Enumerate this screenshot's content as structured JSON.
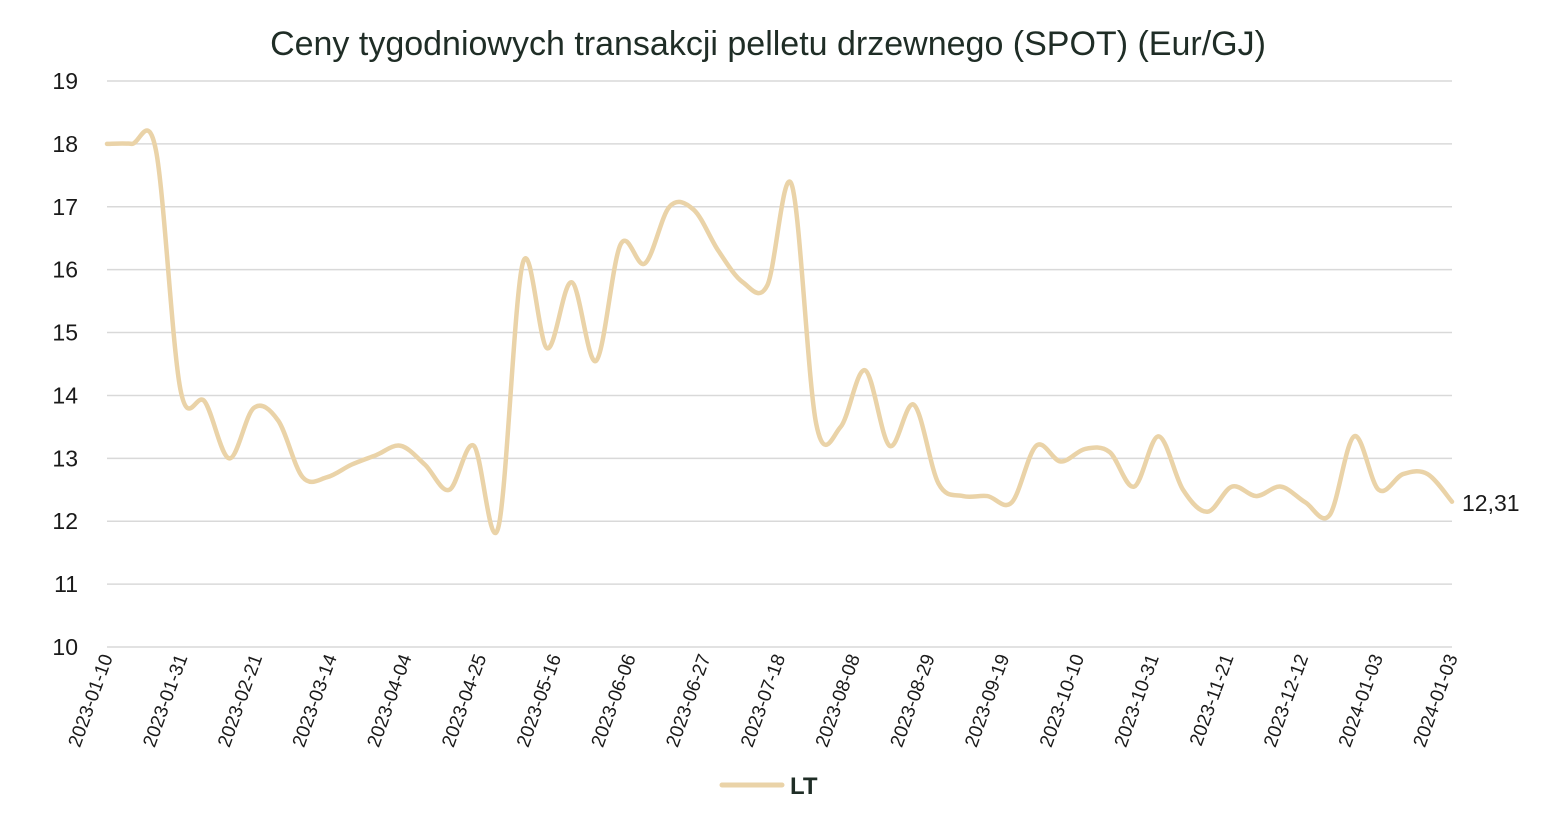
{
  "chart_data": {
    "type": "line",
    "title": "Ceny tygodniowych transakcji pelletu drzewnego (SPOT) (Eur/GJ)",
    "xlabel": "",
    "ylabel": "",
    "ylim": [
      10,
      19
    ],
    "yticks": [
      10,
      11,
      12,
      13,
      14,
      15,
      16,
      17,
      18,
      19
    ],
    "grid": true,
    "legend_position": "bottom",
    "x_tick_labels": [
      "2023-01-10",
      "2023-01-31",
      "2023-02-21",
      "2023-03-14",
      "2023-04-04",
      "2023-04-25",
      "2023-05-16",
      "2023-06-06",
      "2023-06-27",
      "2023-07-18",
      "2023-08-08",
      "2023-08-29",
      "2023-09-19",
      "2023-10-10",
      "2023-10-31",
      "2023-11-21",
      "2023-12-12",
      "2024-01-03",
      "2024-01-03"
    ],
    "end_label": "12,31",
    "series": [
      {
        "name": "LT",
        "color": "#ead3a8",
        "values": [
          18.0,
          18.0,
          17.9,
          14.1,
          13.9,
          13.0,
          13.8,
          13.6,
          12.7,
          12.7,
          12.9,
          13.05,
          13.2,
          12.9,
          12.5,
          13.2,
          11.9,
          16.1,
          14.75,
          15.8,
          14.55,
          16.4,
          16.1,
          17.0,
          16.95,
          16.3,
          15.8,
          15.75,
          17.35,
          13.55,
          13.5,
          14.4,
          13.2,
          13.85,
          12.6,
          12.4,
          12.4,
          12.3,
          13.2,
          12.95,
          13.15,
          13.1,
          12.55,
          13.35,
          12.5,
          12.15,
          12.55,
          12.4,
          12.55,
          12.3,
          12.1,
          13.35,
          12.5,
          12.75,
          12.75,
          12.31
        ]
      }
    ]
  }
}
